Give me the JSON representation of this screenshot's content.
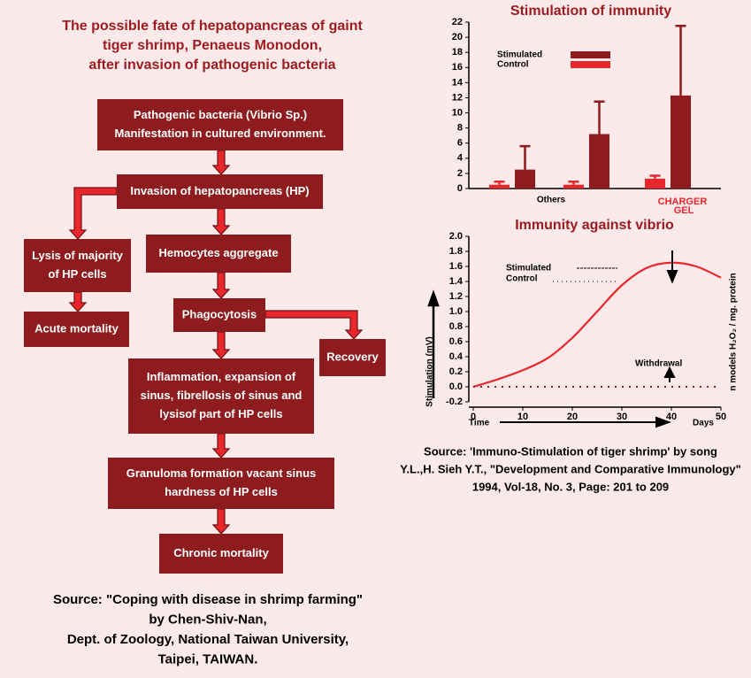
{
  "flowchart": {
    "title": [
      "The possible fate of hepatopancreas of gaint",
      "tiger shrimp, Penaeus Monodon,",
      "after invasion of pathogenic bacteria"
    ],
    "nodes": [
      {
        "lines": [
          "Pathogenic bacteria (Vibrio Sp.)",
          "Manifestation in cultured environment."
        ]
      },
      {
        "lines": [
          "Invasion of hepatopancreas (HP)"
        ]
      },
      {
        "lines": [
          "Lysis of majority",
          "of HP cells"
        ]
      },
      {
        "lines": [
          "Acute mortality"
        ]
      },
      {
        "lines": [
          "Hemocytes aggregate"
        ]
      },
      {
        "lines": [
          "Phagocytosis"
        ]
      },
      {
        "lines": [
          "Recovery"
        ]
      },
      {
        "lines": [
          "Inflammation, expansion of",
          "sinus, fibrellosis of sinus and",
          "lysisof part of HP cells"
        ]
      },
      {
        "lines": [
          "Granuloma formation vacant sinus",
          "hardness of HP cells"
        ]
      },
      {
        "lines": [
          "Chronic mortality"
        ]
      }
    ],
    "source": [
      "Source: \"Coping with disease in shrimp farming\"",
      "by Chen-Shiv-Nan,",
      "Dept. of Zoology, National Taiwan University,",
      "Taipei, TAIWAN."
    ]
  },
  "chart_data": [
    {
      "type": "bar",
      "title": "Stimulation of immunity",
      "categories": [
        null,
        null,
        "CHARGER GEL"
      ],
      "group_label": "Others",
      "series": [
        {
          "name": "Stimulated",
          "color": "#8e1b1d",
          "values": [
            2.5,
            7.2,
            12.3
          ],
          "errors": [
            3.1,
            4.3,
            9.2
          ]
        },
        {
          "name": "Control",
          "color": "#e8262b",
          "values": [
            0.5,
            0.5,
            1.3
          ],
          "errors": [
            0.4,
            0.4,
            0.4
          ]
        }
      ],
      "ylim": [
        0,
        22
      ],
      "yticks": [
        0,
        2,
        4,
        6,
        8,
        10,
        12,
        14,
        16,
        18,
        20,
        22
      ]
    },
    {
      "type": "line",
      "title": "Immunity against vibrio",
      "y_label": "Stimulation (mV)",
      "y2_label": "n models H₂O₂ / mg. protein",
      "x_label_left": "Time",
      "x_label_right": "Days",
      "annotation": "Withdrawal",
      "x": [
        0,
        5,
        10,
        15,
        20,
        25,
        30,
        35,
        40,
        45,
        50
      ],
      "series": [
        {
          "name": "Stimulated",
          "color": "#e8262b",
          "values": [
            0,
            0.1,
            0.22,
            0.38,
            0.65,
            1.0,
            1.35,
            1.58,
            1.65,
            1.6,
            1.45
          ]
        },
        {
          "name": "Control",
          "color": "#8e1b1d",
          "values": [
            0,
            0,
            0,
            0,
            0,
            0,
            0,
            0,
            0,
            0,
            0
          ]
        }
      ],
      "xlim": [
        0,
        50
      ],
      "xticks": [
        0,
        10,
        20,
        30,
        40,
        50
      ],
      "ylim": [
        -0.2,
        2.0
      ],
      "yticks": [
        -0.2,
        {
          "value": 0,
          "label": "0.0"
        },
        0.2,
        0.4,
        0.6,
        0.8,
        {
          "value": 1,
          "label": "1.0"
        },
        1.2,
        1.4,
        1.6,
        1.8,
        {
          "value": 2,
          "label": "2.0"
        }
      ],
      "source": [
        "Source: 'Immuno-Stimulation of tiger shrimp' by song",
        "Y.L.,H. Sieh Y.T., \"Development and Comparative Immunology\"",
        "1994, Vol-18, No. 3, Page: 201 to 209"
      ]
    }
  ]
}
